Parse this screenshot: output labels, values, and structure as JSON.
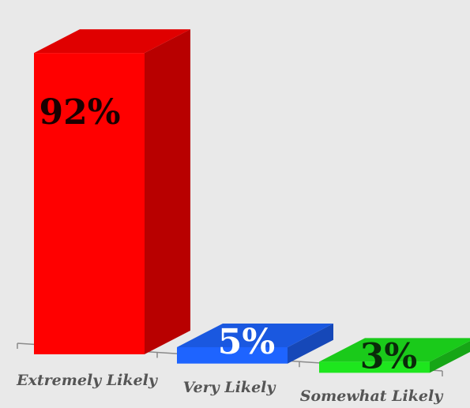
{
  "chart_data": {
    "type": "bar",
    "style": "3d",
    "categories": [
      "Extremely Likely",
      "Very Likely",
      "Somewhat Likely"
    ],
    "values": [
      92,
      5,
      3
    ],
    "value_labels": [
      "92%",
      "5%",
      "3%"
    ],
    "colors": [
      "#ff0000",
      "#1e64ff",
      "#1ee61e"
    ],
    "label_colors": [
      "#1a0000",
      "#ffffff",
      "#0a2a0a"
    ],
    "ylim": [
      0,
      100
    ],
    "grid": false,
    "legend": "none",
    "title": "",
    "xlabel": "",
    "ylabel": ""
  }
}
